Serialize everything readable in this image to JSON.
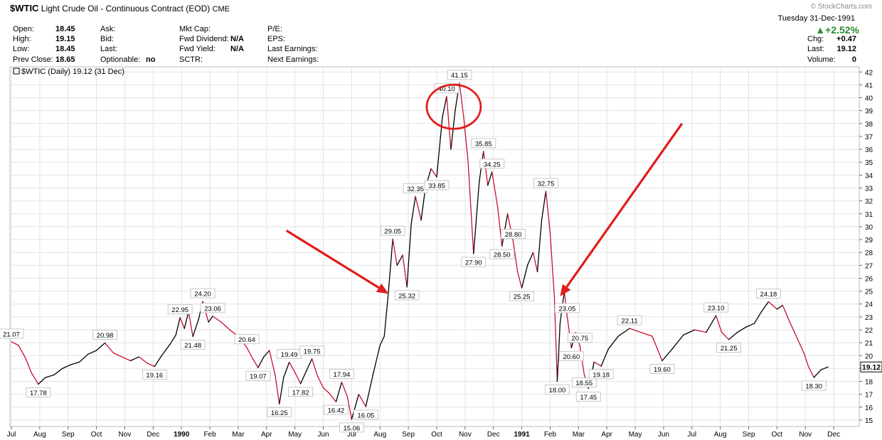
{
  "header": {
    "symbol": "$WTIC",
    "name": "Light Crude Oil - Continuous Contract (EOD)",
    "exchange": "CME",
    "watermark": "© StockCharts.com",
    "date": "Tuesday  31-Dec-1991",
    "change_pct": "+2.52%",
    "quote_left": [
      {
        "label": "Open:",
        "value": "18.45"
      },
      {
        "label": "High:",
        "value": "19.15"
      },
      {
        "label": "Low:",
        "value": "18.45"
      },
      {
        "label": "Prev Close:",
        "value": "18.65"
      }
    ],
    "quote_mid": [
      {
        "label": "Ask:",
        "value": ""
      },
      {
        "label": "Bid:",
        "value": ""
      },
      {
        "label": "Last:",
        "value": ""
      },
      {
        "label": "Optionable:",
        "value": "no"
      }
    ],
    "quote_mid2": [
      {
        "label": "Mkt Cap:",
        "value": ""
      },
      {
        "label": "Fwd Dividend:",
        "value": "N/A"
      },
      {
        "label": "Fwd Yield:",
        "value": "N/A"
      },
      {
        "label": "SCTR:",
        "value": ""
      }
    ],
    "quote_right": [
      {
        "label": "P/E:",
        "value": ""
      },
      {
        "label": "EPS:",
        "value": ""
      },
      {
        "label": "Last Earnings:",
        "value": ""
      },
      {
        "label": "Next Earnings:",
        "value": ""
      }
    ],
    "quote_far": [
      {
        "label": "Chg:",
        "value": "+0.47"
      },
      {
        "label": "Last:",
        "value": "19.12"
      },
      {
        "label": "Volume:",
        "value": "0"
      }
    ]
  },
  "chart_data": {
    "type": "line",
    "legend": "$WTIC (Daily) 19.12 (31 Dec)",
    "last_value": "19.12",
    "ylim": [
      14.5,
      42.4
    ],
    "y_ticks": [
      15,
      16,
      17,
      18,
      19,
      20,
      21,
      22,
      23,
      24,
      25,
      26,
      27,
      28,
      29,
      30,
      31,
      32,
      33,
      34,
      35,
      36,
      37,
      38,
      39,
      40,
      41,
      42
    ],
    "x_ticks": [
      {
        "t": 0,
        "label": "Jul",
        "bold": false
      },
      {
        "t": 1,
        "label": "Aug",
        "bold": false
      },
      {
        "t": 2,
        "label": "Sep",
        "bold": false
      },
      {
        "t": 3,
        "label": "Oct",
        "bold": false
      },
      {
        "t": 4,
        "label": "Nov",
        "bold": false
      },
      {
        "t": 5,
        "label": "Dec",
        "bold": false
      },
      {
        "t": 6,
        "label": "1990",
        "bold": true
      },
      {
        "t": 7,
        "label": "Feb",
        "bold": false
      },
      {
        "t": 8,
        "label": "Mar",
        "bold": false
      },
      {
        "t": 9,
        "label": "Apr",
        "bold": false
      },
      {
        "t": 10,
        "label": "May",
        "bold": false
      },
      {
        "t": 11,
        "label": "Jun",
        "bold": false
      },
      {
        "t": 12,
        "label": "Jul",
        "bold": false
      },
      {
        "t": 13,
        "label": "Aug",
        "bold": false
      },
      {
        "t": 14,
        "label": "Sep",
        "bold": false
      },
      {
        "t": 15,
        "label": "Oct",
        "bold": false
      },
      {
        "t": 16,
        "label": "Nov",
        "bold": false
      },
      {
        "t": 17,
        "label": "Dec",
        "bold": false
      },
      {
        "t": 18,
        "label": "1991",
        "bold": true
      },
      {
        "t": 19,
        "label": "Feb",
        "bold": false
      },
      {
        "t": 20,
        "label": "Mar",
        "bold": false
      },
      {
        "t": 21,
        "label": "Apr",
        "bold": false
      },
      {
        "t": 22,
        "label": "May",
        "bold": false
      },
      {
        "t": 23,
        "label": "Jun",
        "bold": false
      },
      {
        "t": 24,
        "label": "Jul",
        "bold": false
      },
      {
        "t": 25,
        "label": "Aug",
        "bold": false
      },
      {
        "t": 26,
        "label": "Sep",
        "bold": false
      },
      {
        "t": 27,
        "label": "Oct",
        "bold": false
      },
      {
        "t": 28,
        "label": "Nov",
        "bold": false
      },
      {
        "t": 29,
        "label": "Dec",
        "bold": false
      }
    ],
    "x_range": [
      -0.05,
      29.9
    ],
    "series": [
      {
        "points": [
          [
            0.0,
            21.07
          ],
          [
            0.25,
            20.8
          ],
          [
            0.5,
            19.8
          ],
          [
            0.7,
            18.7
          ],
          [
            0.95,
            17.78
          ],
          [
            1.2,
            18.3
          ],
          [
            1.5,
            18.5
          ],
          [
            1.8,
            19.0
          ],
          [
            2.1,
            19.3
          ],
          [
            2.4,
            19.5
          ],
          [
            2.7,
            20.1
          ],
          [
            3.0,
            20.4
          ],
          [
            3.3,
            20.98
          ],
          [
            3.6,
            20.2
          ],
          [
            3.9,
            19.9
          ],
          [
            4.2,
            19.6
          ],
          [
            4.5,
            19.9
          ],
          [
            4.8,
            19.4
          ],
          [
            5.05,
            19.16
          ],
          [
            5.3,
            20.0
          ],
          [
            5.6,
            20.9
          ],
          [
            5.8,
            21.6
          ],
          [
            5.95,
            22.95
          ],
          [
            6.1,
            22.1
          ],
          [
            6.25,
            23.4
          ],
          [
            6.4,
            21.48
          ],
          [
            6.6,
            22.8
          ],
          [
            6.75,
            24.2
          ],
          [
            6.95,
            22.6
          ],
          [
            7.1,
            23.06
          ],
          [
            7.4,
            22.6
          ],
          [
            7.7,
            22.0
          ],
          [
            8.0,
            21.5
          ],
          [
            8.3,
            20.64
          ],
          [
            8.5,
            19.8
          ],
          [
            8.7,
            19.07
          ],
          [
            8.9,
            19.9
          ],
          [
            9.1,
            20.4
          ],
          [
            9.3,
            18.5
          ],
          [
            9.45,
            16.25
          ],
          [
            9.6,
            18.3
          ],
          [
            9.8,
            19.49
          ],
          [
            10.0,
            18.7
          ],
          [
            10.2,
            17.82
          ],
          [
            10.4,
            18.8
          ],
          [
            10.6,
            19.75
          ],
          [
            10.8,
            18.4
          ],
          [
            11.0,
            17.5
          ],
          [
            11.2,
            17.1
          ],
          [
            11.45,
            16.42
          ],
          [
            11.65,
            17.94
          ],
          [
            11.85,
            16.8
          ],
          [
            12.0,
            15.06
          ],
          [
            12.25,
            17.0
          ],
          [
            12.5,
            16.05
          ],
          [
            12.75,
            18.5
          ],
          [
            13.0,
            20.8
          ],
          [
            13.15,
            21.5
          ],
          [
            13.3,
            25.0
          ],
          [
            13.45,
            29.05
          ],
          [
            13.6,
            27.0
          ],
          [
            13.8,
            27.8
          ],
          [
            13.95,
            25.32
          ],
          [
            14.1,
            30.2
          ],
          [
            14.25,
            32.35
          ],
          [
            14.45,
            30.5
          ],
          [
            14.6,
            33.0
          ],
          [
            14.8,
            34.5
          ],
          [
            15.0,
            33.85
          ],
          [
            15.2,
            38.5
          ],
          [
            15.35,
            40.1
          ],
          [
            15.5,
            36.0
          ],
          [
            15.65,
            39.0
          ],
          [
            15.8,
            41.15
          ],
          [
            15.95,
            38.5
          ],
          [
            16.1,
            35.2
          ],
          [
            16.3,
            27.9
          ],
          [
            16.5,
            33.5
          ],
          [
            16.65,
            35.85
          ],
          [
            16.8,
            33.2
          ],
          [
            16.95,
            34.25
          ],
          [
            17.15,
            31.5
          ],
          [
            17.3,
            28.5
          ],
          [
            17.5,
            31.0
          ],
          [
            17.7,
            28.8
          ],
          [
            17.85,
            26.5
          ],
          [
            18.0,
            25.25
          ],
          [
            18.2,
            27.0
          ],
          [
            18.4,
            28.0
          ],
          [
            18.55,
            26.5
          ],
          [
            18.7,
            30.5
          ],
          [
            18.85,
            32.75
          ],
          [
            19.0,
            29.5
          ],
          [
            19.15,
            24.5
          ],
          [
            19.25,
            18.0
          ],
          [
            19.35,
            22.5
          ],
          [
            19.5,
            25.0
          ],
          [
            19.6,
            23.05
          ],
          [
            19.75,
            20.6
          ],
          [
            19.9,
            21.8
          ],
          [
            20.05,
            20.75
          ],
          [
            20.2,
            18.55
          ],
          [
            20.35,
            17.45
          ],
          [
            20.55,
            19.5
          ],
          [
            20.8,
            19.18
          ],
          [
            21.05,
            20.5
          ],
          [
            21.4,
            21.5
          ],
          [
            21.8,
            22.11
          ],
          [
            22.2,
            21.8
          ],
          [
            22.6,
            21.5
          ],
          [
            22.95,
            19.6
          ],
          [
            23.3,
            20.5
          ],
          [
            23.7,
            21.6
          ],
          [
            24.1,
            22.0
          ],
          [
            24.5,
            21.8
          ],
          [
            24.85,
            23.1
          ],
          [
            25.05,
            21.8
          ],
          [
            25.3,
            21.25
          ],
          [
            25.6,
            21.8
          ],
          [
            25.9,
            22.2
          ],
          [
            26.2,
            22.5
          ],
          [
            26.45,
            23.4
          ],
          [
            26.7,
            24.18
          ],
          [
            27.0,
            23.6
          ],
          [
            27.2,
            23.9
          ],
          [
            27.45,
            22.6
          ],
          [
            27.7,
            21.4
          ],
          [
            27.95,
            20.2
          ],
          [
            28.1,
            19.2
          ],
          [
            28.3,
            18.3
          ],
          [
            28.55,
            18.9
          ],
          [
            28.8,
            19.12
          ]
        ]
      }
    ],
    "labels": [
      {
        "x": 0.0,
        "y": 21.07,
        "text": "21.07",
        "pos": "above"
      },
      {
        "x": 0.95,
        "y": 17.78,
        "text": "17.78",
        "pos": "below"
      },
      {
        "x": 3.3,
        "y": 20.98,
        "text": "20.98",
        "pos": "above"
      },
      {
        "x": 5.05,
        "y": 19.16,
        "text": "19.16",
        "pos": "below"
      },
      {
        "x": 5.95,
        "y": 22.95,
        "text": "22.95",
        "pos": "above"
      },
      {
        "x": 6.4,
        "y": 21.48,
        "text": "21.48",
        "pos": "below"
      },
      {
        "x": 6.75,
        "y": 24.2,
        "text": "24.20",
        "pos": "above"
      },
      {
        "x": 7.1,
        "y": 23.06,
        "text": "23.06",
        "pos": "above"
      },
      {
        "x": 8.3,
        "y": 20.64,
        "text": "20.64",
        "pos": "above"
      },
      {
        "x": 8.7,
        "y": 19.07,
        "text": "19.07",
        "pos": "below"
      },
      {
        "x": 9.45,
        "y": 16.25,
        "text": "16.25",
        "pos": "below"
      },
      {
        "x": 9.8,
        "y": 19.49,
        "text": "19.49",
        "pos": "above"
      },
      {
        "x": 10.2,
        "y": 17.82,
        "text": "17.82",
        "pos": "below"
      },
      {
        "x": 10.6,
        "y": 19.75,
        "text": "19.75",
        "pos": "above"
      },
      {
        "x": 11.45,
        "y": 16.42,
        "text": "16.42",
        "pos": "below"
      },
      {
        "x": 11.65,
        "y": 17.94,
        "text": "17.94",
        "pos": "above"
      },
      {
        "x": 12.0,
        "y": 15.06,
        "text": "15.06",
        "pos": "below"
      },
      {
        "x": 12.5,
        "y": 16.05,
        "text": "16.05",
        "pos": "below"
      },
      {
        "x": 13.45,
        "y": 29.05,
        "text": "29.05",
        "pos": "above"
      },
      {
        "x": 13.95,
        "y": 25.32,
        "text": "25.32",
        "pos": "below"
      },
      {
        "x": 14.25,
        "y": 32.35,
        "text": "32.35",
        "pos": "above"
      },
      {
        "x": 15.0,
        "y": 33.85,
        "text": "33.85",
        "pos": "below"
      },
      {
        "x": 15.35,
        "y": 40.1,
        "text": "40.10",
        "pos": "above"
      },
      {
        "x": 15.8,
        "y": 41.15,
        "text": "41.15",
        "pos": "above"
      },
      {
        "x": 16.3,
        "y": 27.9,
        "text": "27.90",
        "pos": "below"
      },
      {
        "x": 16.65,
        "y": 35.85,
        "text": "35.85",
        "pos": "above"
      },
      {
        "x": 16.95,
        "y": 34.25,
        "text": "34.25",
        "pos": "above"
      },
      {
        "x": 17.3,
        "y": 28.5,
        "text": "28.50",
        "pos": "below"
      },
      {
        "x": 17.7,
        "y": 28.8,
        "text": "28.80",
        "pos": "above"
      },
      {
        "x": 18.0,
        "y": 25.25,
        "text": "25.25",
        "pos": "below"
      },
      {
        "x": 18.85,
        "y": 32.75,
        "text": "32.75",
        "pos": "above"
      },
      {
        "x": 19.25,
        "y": 18.0,
        "text": "18.00",
        "pos": "below"
      },
      {
        "x": 19.6,
        "y": 23.05,
        "text": "23.05",
        "pos": "above"
      },
      {
        "x": 19.75,
        "y": 20.6,
        "text": "20.60",
        "pos": "below"
      },
      {
        "x": 20.05,
        "y": 20.75,
        "text": "20.75",
        "pos": "above"
      },
      {
        "x": 20.2,
        "y": 18.55,
        "text": "18.55",
        "pos": "below"
      },
      {
        "x": 20.35,
        "y": 17.45,
        "text": "17.45",
        "pos": "below"
      },
      {
        "x": 20.8,
        "y": 19.18,
        "text": "19.18",
        "pos": "below"
      },
      {
        "x": 21.8,
        "y": 22.11,
        "text": "22.11",
        "pos": "above"
      },
      {
        "x": 22.95,
        "y": 19.6,
        "text": "19.60",
        "pos": "below"
      },
      {
        "x": 24.85,
        "y": 23.1,
        "text": "23.10",
        "pos": "above"
      },
      {
        "x": 25.3,
        "y": 21.25,
        "text": "21.25",
        "pos": "below"
      },
      {
        "x": 26.7,
        "y": 24.18,
        "text": "24.18",
        "pos": "above"
      },
      {
        "x": 28.3,
        "y": 18.3,
        "text": "18.30",
        "pos": "below"
      }
    ],
    "annotations": {
      "circle_center": [
        15.6,
        39.3
      ],
      "arrow1": {
        "from": [
          9.7,
          29.7
        ],
        "to": [
          13.3,
          24.8
        ]
      },
      "arrow2": {
        "from": [
          23.65,
          38.0
        ],
        "to": [
          19.35,
          24.6
        ]
      }
    },
    "colors": {
      "line": "#000000",
      "down": "#c8102e",
      "annotation": "#e31b1b",
      "grid": "#e4e4e4",
      "axis": "#666666"
    }
  }
}
